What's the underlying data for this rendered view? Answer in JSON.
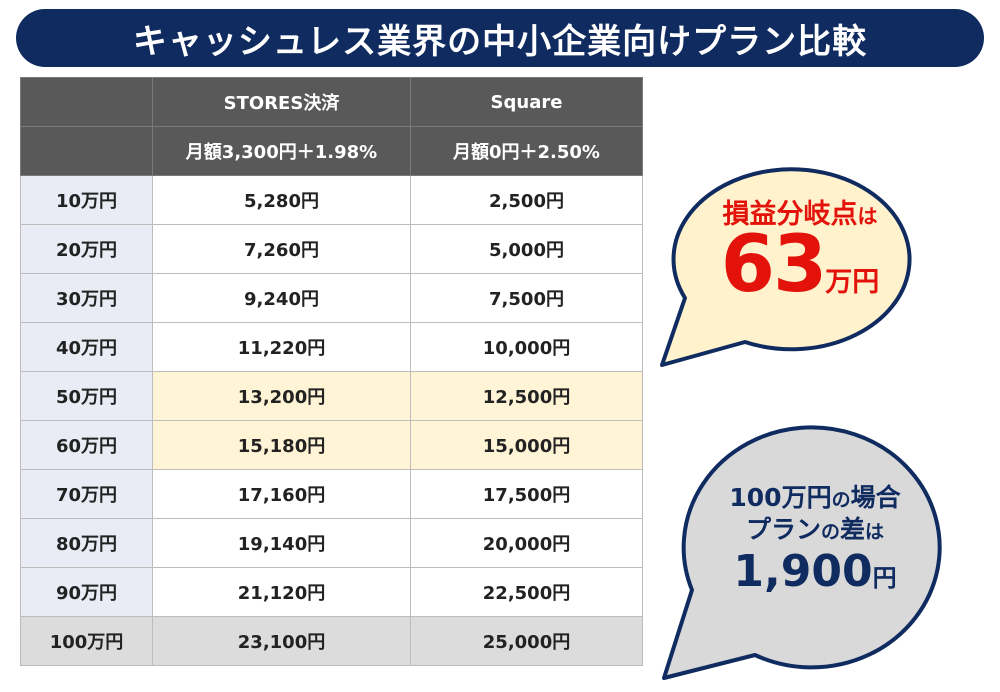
{
  "title": "キャッシュレス業界の中小企業向けプラン比較",
  "table": {
    "columns": [
      {
        "name": "STORES決済",
        "plan": "月額3,300円＋1.98%"
      },
      {
        "name": "Square",
        "plan": "月額0円＋2.50%"
      }
    ],
    "rows": [
      {
        "label": "10万円",
        "stores": "5,280円",
        "square": "2,500円"
      },
      {
        "label": "20万円",
        "stores": "7,260円",
        "square": "5,000円"
      },
      {
        "label": "30万円",
        "stores": "9,240円",
        "square": "7,500円"
      },
      {
        "label": "40万円",
        "stores": "11,220円",
        "square": "10,000円"
      },
      {
        "label": "50万円",
        "stores": "13,200円",
        "square": "12,500円"
      },
      {
        "label": "60万円",
        "stores": "15,180円",
        "square": "15,000円"
      },
      {
        "label": "70万円",
        "stores": "17,160円",
        "square": "17,500円"
      },
      {
        "label": "80万円",
        "stores": "19,140円",
        "square": "20,000円"
      },
      {
        "label": "90万円",
        "stores": "21,120円",
        "square": "22,500円"
      },
      {
        "label": "100万円",
        "stores": "23,100円",
        "square": "25,000円"
      }
    ]
  },
  "bubble_breakeven": {
    "label": "損益分岐点",
    "particle": "は",
    "value": "63",
    "unit": "万円"
  },
  "bubble_difference": {
    "line1": "100万円",
    "line1_particle": "の",
    "line1_rest": "場合",
    "line2": "プラン",
    "line2_particle": "の",
    "line2_mid": "差",
    "line2_particle2": "は",
    "value": "1,900",
    "unit": "円"
  },
  "colors": {
    "navy": "#0f2b5f",
    "header_gray": "#595959",
    "highlight": "#fff4d6",
    "row_label_bg": "#e9ecf5",
    "last_row_bg": "#dcdcdc",
    "red": "#e3120b",
    "bubble1_fill": "#fff2cc",
    "bubble2_fill": "#d9d9d9"
  }
}
